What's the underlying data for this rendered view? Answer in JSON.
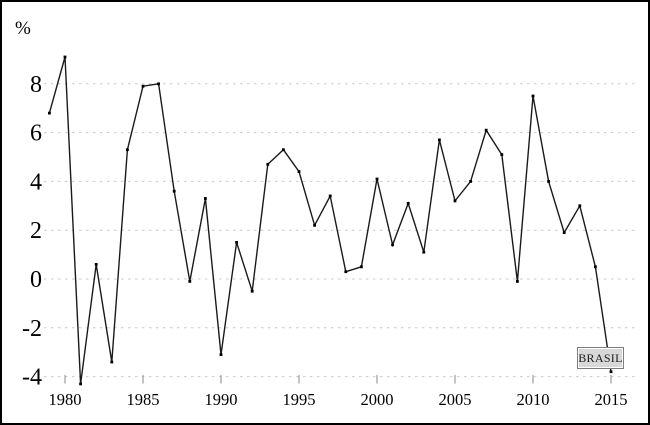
{
  "figure": {
    "unit_label": "%",
    "annotation_label": "BRASIL"
  },
  "chart_data": {
    "type": "line",
    "title": "",
    "xlabel": "",
    "ylabel": "%",
    "legend_position": "bottom-right-inline-box",
    "grid": "horizontal-dashed",
    "line_color": "#1a1a1a",
    "marker": "square",
    "grid_color": "#c9c9c9",
    "tick_color": "#8a8a8a",
    "annotation_box": {
      "label": "BRASIL",
      "fill": "#d8d8d8",
      "border": "#7d7d7d"
    },
    "xlim": [
      1978.4,
      2016.9
    ],
    "ylim": [
      -4.9,
      9.7
    ],
    "y_ticks": [
      8,
      6,
      4,
      2,
      0,
      -2,
      -4
    ],
    "x_ticks": [
      1980,
      1985,
      1990,
      1995,
      2000,
      2005,
      2010,
      2015
    ],
    "series": [
      {
        "name": "BRASIL",
        "x": [
          1979,
          1980,
          1981,
          1982,
          1983,
          1984,
          1985,
          1986,
          1987,
          1988,
          1989,
          1990,
          1991,
          1992,
          1993,
          1994,
          1995,
          1996,
          1997,
          1998,
          1999,
          2000,
          2001,
          2002,
          2003,
          2004,
          2005,
          2006,
          2007,
          2008,
          2009,
          2010,
          2011,
          2012,
          2013,
          2014,
          2015
        ],
        "values": [
          6.8,
          9.1,
          -4.3,
          0.6,
          -3.4,
          5.3,
          7.9,
          8.0,
          3.6,
          -0.1,
          3.3,
          -3.1,
          1.5,
          -0.5,
          4.7,
          5.3,
          4.4,
          2.2,
          3.4,
          0.3,
          0.5,
          4.1,
          1.4,
          3.1,
          1.1,
          5.7,
          3.2,
          4.0,
          6.1,
          5.1,
          -0.1,
          7.5,
          4.0,
          1.9,
          3.0,
          0.5,
          -3.8
        ]
      }
    ]
  }
}
